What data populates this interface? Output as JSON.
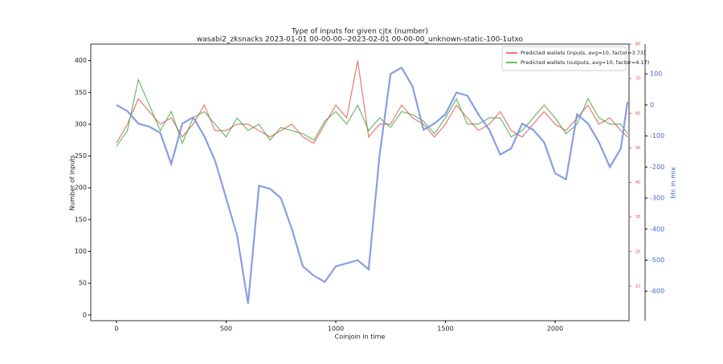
{
  "chart_data": {
    "type": "line",
    "title": "Type of inputs for given cjtx (number)",
    "subtitle": "wasabi2_zksnacks 2023-01-01 00-00-00--2023-02-01 00-00-00_unknown-static-100-1utxo",
    "xlabel": "Coinjoin in time",
    "ylabel": "Number of inputs",
    "y3label": "btc in mix",
    "x": [
      0,
      50,
      100,
      150,
      200,
      250,
      300,
      350,
      400,
      450,
      500,
      550,
      600,
      650,
      700,
      750,
      800,
      850,
      900,
      950,
      1000,
      1050,
      1100,
      1150,
      1200,
      1250,
      1300,
      1350,
      1400,
      1450,
      1500,
      1550,
      1600,
      1650,
      1700,
      1750,
      1800,
      1850,
      1900,
      1950,
      2000,
      2050,
      2100,
      2150,
      2200,
      2250,
      2300,
      2330
    ],
    "series": [
      {
        "name": "Predicted wallets (inputs, avg=10, factor=3.73)",
        "color": "#e8474a",
        "values": [
          270,
          300,
          340,
          320,
          300,
          310,
          280,
          300,
          330,
          290,
          290,
          300,
          300,
          290,
          280,
          290,
          300,
          280,
          270,
          300,
          330,
          310,
          400,
          280,
          300,
          300,
          330,
          310,
          300,
          280,
          300,
          330,
          310,
          290,
          300,
          320,
          290,
          280,
          300,
          320,
          300,
          290,
          310,
          330,
          300,
          310,
          290,
          280
        ]
      },
      {
        "name": "Predicted wallets (outputs, avg=10, factor=4.17)",
        "color": "#3aa23a",
        "values": [
          265,
          290,
          370,
          330,
          290,
          320,
          270,
          310,
          320,
          300,
          280,
          310,
          290,
          300,
          275,
          295,
          290,
          285,
          275,
          305,
          320,
          300,
          330,
          290,
          310,
          295,
          320,
          315,
          305,
          285,
          310,
          340,
          300,
          300,
          310,
          310,
          280,
          290,
          310,
          330,
          310,
          285,
          300,
          340,
          310,
          300,
          300,
          285
        ]
      },
      {
        "name": "btc in mix",
        "color": "#7b93e0",
        "axis": "y3",
        "values": [
          0,
          -20,
          -60,
          -70,
          -90,
          -190,
          -60,
          -40,
          -100,
          -180,
          -300,
          -420,
          -640,
          -260,
          -270,
          -300,
          -400,
          -520,
          -550,
          -570,
          -520,
          -510,
          -500,
          -530,
          -160,
          100,
          120,
          60,
          -80,
          -60,
          -30,
          40,
          30,
          -30,
          -80,
          -160,
          -140,
          -60,
          -80,
          -120,
          -220,
          -240,
          -30,
          -60,
          -120,
          -200,
          -140,
          10
        ]
      }
    ],
    "xlim": [
      -117,
      2337
    ],
    "xticks": [
      0,
      500,
      1000,
      1500,
      2000
    ],
    "ylim": [
      -9,
      426
    ],
    "yticks": [
      0,
      50,
      100,
      150,
      200,
      250,
      300,
      350,
      400
    ],
    "y2lim": [
      0,
      80
    ],
    "y2ticks": [
      10,
      20,
      30,
      40,
      50,
      60,
      70,
      80
    ],
    "y2color": "#e8474a",
    "y3lim": [
      -695,
      196
    ],
    "y3ticks": [
      100,
      0,
      -100,
      -200,
      -300,
      -400,
      -500,
      -600
    ],
    "y3color": "#4466cc",
    "legend": "upper right"
  }
}
